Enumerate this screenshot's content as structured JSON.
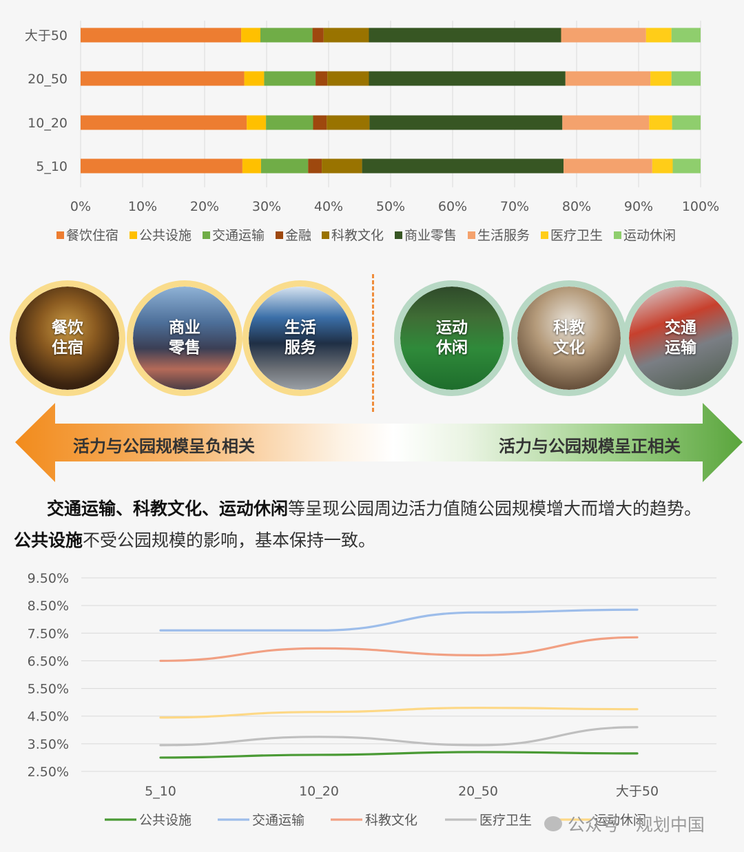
{
  "chart_data": [
    {
      "type": "bar",
      "orientation": "horizontal",
      "stacked": "percent",
      "categories": [
        "5_10",
        "10_20",
        "20_50",
        "大于50"
      ],
      "x_ticks": [
        "0%",
        "10%",
        "20%",
        "30%",
        "40%",
        "50%",
        "60%",
        "70%",
        "80%",
        "90%",
        "100%"
      ],
      "xlim": [
        0,
        100
      ],
      "legend_position": "bottom",
      "series": [
        {
          "name": "餐饮住宿",
          "color": "#ed7d31",
          "values": [
            26.1,
            26.8,
            26.4,
            25.9
          ]
        },
        {
          "name": "公共设施",
          "color": "#ffc000",
          "values": [
            3.0,
            3.1,
            3.2,
            3.1
          ]
        },
        {
          "name": "交通运输",
          "color": "#70ad47",
          "values": [
            7.6,
            7.6,
            8.3,
            8.4
          ]
        },
        {
          "name": "金融",
          "color": "#9e480e",
          "values": [
            2.2,
            2.2,
            1.9,
            1.8
          ]
        },
        {
          "name": "科教文化",
          "color": "#997300",
          "values": [
            6.5,
            6.9,
            6.7,
            7.3
          ]
        },
        {
          "name": "商业零售",
          "color": "#375623",
          "values": [
            32.5,
            31.1,
            31.7,
            31.0
          ]
        },
        {
          "name": "生活服务",
          "color": "#f4a26d",
          "values": [
            14.3,
            14.0,
            13.7,
            13.7
          ]
        },
        {
          "name": "医疗卫生",
          "color": "#ffcd18",
          "values": [
            3.3,
            3.7,
            3.4,
            4.1
          ]
        },
        {
          "name": "运动休闲",
          "color": "#8fce6d",
          "values": [
            4.5,
            4.6,
            4.7,
            4.7
          ]
        }
      ]
    },
    {
      "type": "line",
      "categories": [
        "5_10",
        "10_20",
        "20_50",
        "大于50"
      ],
      "y_ticks": [
        "9.50%",
        "8.50%",
        "7.50%",
        "6.50%",
        "5.50%",
        "4.50%",
        "3.50%",
        "2.50%"
      ],
      "ylim": [
        2.5,
        9.5
      ],
      "grid": true,
      "legend_position": "bottom",
      "series": [
        {
          "name": "公共设施",
          "color": "#4a9a35",
          "values": [
            3.0,
            3.1,
            3.2,
            3.15
          ]
        },
        {
          "name": "交通运输",
          "color": "#9dbdea",
          "values": [
            7.6,
            7.6,
            8.25,
            8.35
          ]
        },
        {
          "name": "科教文化",
          "color": "#f1a083",
          "values": [
            6.5,
            6.95,
            6.7,
            7.35
          ]
        },
        {
          "name": "医疗卫生",
          "color": "#bfbfbf",
          "values": [
            3.45,
            3.75,
            3.45,
            4.1
          ]
        },
        {
          "name": "运动休闲",
          "color": "#fdd886",
          "values": [
            4.45,
            4.65,
            4.8,
            4.75
          ]
        }
      ]
    }
  ],
  "circles_left": [
    {
      "label": "餐饮住宿",
      "photo": "restaurant"
    },
    {
      "label": "商业零售",
      "photo": "shopping-street"
    },
    {
      "label": "生活服务",
      "photo": "storefront"
    }
  ],
  "circles_right": [
    {
      "label": "运动休闲",
      "photo": "sports-field"
    },
    {
      "label": "科教文化",
      "photo": "library"
    },
    {
      "label": "交通运输",
      "photo": "station"
    }
  ],
  "arrow": {
    "left_text": "活力与公园规模呈负相关",
    "right_text": "活力与公园规模呈正相关",
    "left_color": "#f28b1c",
    "right_color": "#5aa53c"
  },
  "paragraph": {
    "bold1": "交通运输、科教文化、运动休闲",
    "text1": "等呈现公园周边活力值随公园规模增大而增大的趋势。",
    "bold2": "公共设施",
    "text2": "不受公园规模的影响，基本保持一致。"
  },
  "watermark": "公众号 · 规划中国"
}
